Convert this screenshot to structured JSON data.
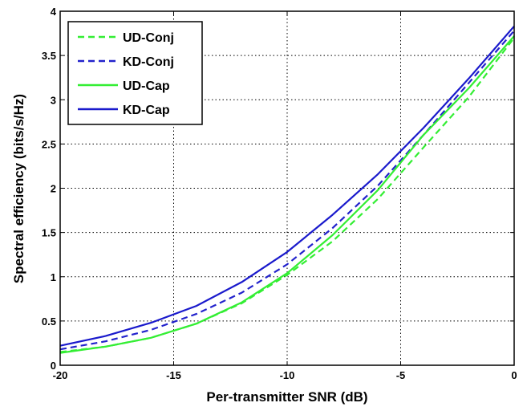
{
  "chart_data": {
    "type": "line",
    "title": "",
    "xlabel": "Per-transmitter SNR (dB)",
    "ylabel": "Spectral efficiency (bits/s/Hz)",
    "xlim": [
      -20,
      0
    ],
    "ylim": [
      0,
      4
    ],
    "xticks": [
      -20,
      -15,
      -10,
      -5,
      0
    ],
    "yticks": [
      0,
      0.5,
      1,
      1.5,
      2,
      2.5,
      3,
      3.5,
      4
    ],
    "grid": true,
    "legend_position": "top-left",
    "series": [
      {
        "name": "UD-Conj",
        "color": "#33ee33",
        "dashed": true,
        "x": [
          -20,
          -18,
          -16,
          -14,
          -12,
          -10,
          -8,
          -6,
          -4,
          -2,
          0
        ],
        "y": [
          0.15,
          0.21,
          0.31,
          0.47,
          0.7,
          1.02,
          1.4,
          1.88,
          2.46,
          3.03,
          3.7
        ]
      },
      {
        "name": "KD-Conj",
        "color": "#2222cc",
        "dashed": true,
        "x": [
          -20,
          -18,
          -16,
          -14,
          -12,
          -10,
          -8,
          -6,
          -4,
          -2,
          0
        ],
        "y": [
          0.18,
          0.27,
          0.4,
          0.58,
          0.82,
          1.14,
          1.55,
          2.03,
          2.6,
          3.19,
          3.78
        ]
      },
      {
        "name": "UD-Cap",
        "color": "#33ee33",
        "dashed": false,
        "x": [
          -20,
          -18,
          -16,
          -14,
          -12,
          -10,
          -8,
          -6,
          -4,
          -2,
          0
        ],
        "y": [
          0.14,
          0.21,
          0.31,
          0.47,
          0.71,
          1.04,
          1.47,
          1.98,
          2.6,
          3.13,
          3.72
        ]
      },
      {
        "name": "KD-Cap",
        "color": "#1a1acc",
        "dashed": false,
        "x": [
          -20,
          -18,
          -16,
          -14,
          -12,
          -10,
          -8,
          -6,
          -4,
          -2,
          0
        ],
        "y": [
          0.22,
          0.33,
          0.48,
          0.67,
          0.94,
          1.28,
          1.7,
          2.16,
          2.68,
          3.24,
          3.83
        ]
      }
    ]
  }
}
